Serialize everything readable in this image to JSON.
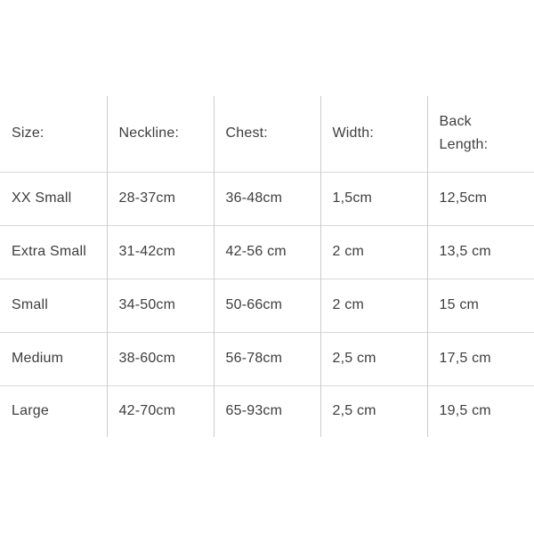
{
  "colors": {
    "background": "#ffffff",
    "text": "#3e3e3e",
    "grid_vertical_line": "#cccccc",
    "grid_horizontal_line": "#d9d9d9"
  },
  "table": {
    "columns": [
      {
        "label": "Size:"
      },
      {
        "label": "Neckline:"
      },
      {
        "label": "Chest:"
      },
      {
        "label": "Width:"
      },
      {
        "label": "Back Length:"
      }
    ],
    "rows": [
      {
        "size": "XX Small",
        "neckline": "28-37cm",
        "chest": "36-48cm",
        "width": "1,5cm",
        "back_length": "12,5cm"
      },
      {
        "size": "Extra Small",
        "neckline": "31-42cm",
        "chest": "42-56 cm",
        "width": "2 cm",
        "back_length": "13,5 cm"
      },
      {
        "size": "Small",
        "neckline": "34-50cm",
        "chest": "50-66cm",
        "width": "2 cm",
        "back_length": "15 cm"
      },
      {
        "size": "Medium",
        "neckline": "38-60cm",
        "chest": "56-78cm",
        "width": "2,5 cm",
        "back_length": "17,5 cm"
      },
      {
        "size": "Large",
        "neckline": "42-70cm",
        "chest": "65-93cm",
        "width": "2,5 cm",
        "back_length": "19,5 cm"
      }
    ]
  }
}
